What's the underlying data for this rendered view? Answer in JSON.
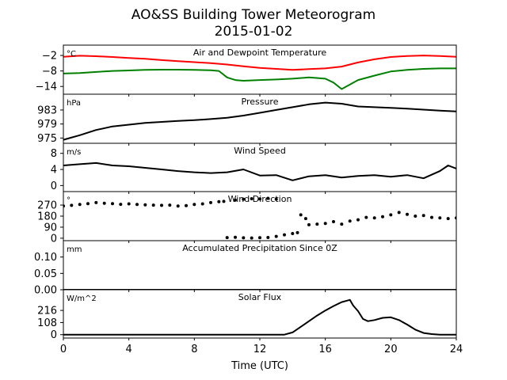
{
  "figure": {
    "title_line1": "AO&SS Building Tower Meteorogram",
    "title_line2": "2015-01-02",
    "xlabel": "Time (UTC)",
    "xlim": [
      0,
      24
    ],
    "xticks": [
      "0",
      "4",
      "8",
      "12",
      "16",
      "20",
      "24"
    ]
  },
  "chart_data": [
    {
      "type": "line",
      "title": "Air and Dewpoint Temperature",
      "unit": "°C",
      "ylim": [
        -17,
        2
      ],
      "yticks": [
        -2,
        -8,
        -14
      ],
      "yticklabels": [
        "−2",
        "−8",
        "−14"
      ],
      "series": [
        {
          "color": "#ff0000",
          "style": "line",
          "x": [
            0,
            1,
            2,
            3,
            4,
            5,
            6,
            7,
            8,
            9,
            10,
            11,
            12,
            13,
            14,
            15,
            16,
            17,
            18,
            19,
            20,
            21,
            22,
            23,
            24
          ],
          "y": [
            -2.5,
            -2.1,
            -2.3,
            -2.6,
            -3.0,
            -3.3,
            -3.8,
            -4.2,
            -4.6,
            -5.0,
            -5.5,
            -6.2,
            -6.8,
            -7.2,
            -7.6,
            -7.3,
            -7.0,
            -6.3,
            -4.7,
            -3.5,
            -2.6,
            -2.2,
            -2.0,
            -2.2,
            -2.5
          ]
        },
        {
          "color": "#008000",
          "style": "line",
          "x": [
            0,
            1,
            2,
            3,
            4,
            5,
            6,
            7,
            8,
            9,
            9.5,
            10,
            10.5,
            11,
            12,
            13,
            14,
            15,
            16,
            16.5,
            17,
            18,
            19,
            20,
            21,
            22,
            23,
            24
          ],
          "y": [
            -9.0,
            -8.8,
            -8.4,
            -8.0,
            -7.8,
            -7.6,
            -7.5,
            -7.5,
            -7.6,
            -7.7,
            -8.0,
            -10.5,
            -11.5,
            -11.8,
            -11.5,
            -11.3,
            -11.0,
            -10.5,
            -11.0,
            -12.5,
            -15.0,
            -11.5,
            -9.8,
            -8.2,
            -7.6,
            -7.2,
            -7.0,
            -7.0
          ]
        }
      ]
    },
    {
      "type": "line",
      "title": "Pressure",
      "unit": "hPa",
      "ylim": [
        973.5,
        987.5
      ],
      "yticks": [
        983,
        979,
        975
      ],
      "yticklabels": [
        "983",
        "979",
        "975"
      ],
      "series": [
        {
          "color": "#000000",
          "style": "line",
          "x": [
            0,
            1,
            2,
            3,
            4,
            5,
            6,
            7,
            8,
            9,
            10,
            11,
            12,
            13,
            14,
            15,
            16,
            17,
            18,
            19,
            20,
            21,
            22,
            23,
            24
          ],
          "y": [
            974.5,
            975.8,
            977.3,
            978.3,
            978.8,
            979.3,
            979.6,
            979.9,
            980.1,
            980.4,
            980.8,
            981.4,
            982.2,
            983.0,
            983.8,
            984.6,
            985.1,
            984.8,
            984.0,
            983.8,
            983.6,
            983.4,
            983.1,
            982.8,
            982.6
          ]
        }
      ]
    },
    {
      "type": "line",
      "title": "Wind Speed",
      "unit": "m/s",
      "ylim": [
        -1.5,
        10.5
      ],
      "yticks": [
        8,
        4,
        0
      ],
      "yticklabels": [
        "8",
        "4",
        "0"
      ],
      "series": [
        {
          "color": "#000000",
          "style": "line",
          "x": [
            0,
            1,
            2,
            3,
            4,
            5,
            6,
            7,
            8,
            9,
            10,
            11,
            12,
            13,
            14,
            15,
            16,
            17,
            18,
            19,
            20,
            21,
            22,
            23,
            23.5,
            24
          ],
          "y": [
            5.0,
            5.3,
            5.6,
            5.0,
            4.8,
            4.4,
            4.0,
            3.6,
            3.3,
            3.1,
            3.3,
            4.0,
            2.5,
            2.6,
            1.3,
            2.3,
            2.6,
            2.0,
            2.4,
            2.6,
            2.2,
            2.6,
            1.8,
            3.6,
            5.0,
            4.2
          ]
        }
      ]
    },
    {
      "type": "scatter",
      "title": "Wind Direction",
      "unit": "°",
      "ylim": [
        -20,
        380
      ],
      "yticks": [
        270,
        180,
        90,
        0
      ],
      "yticklabels": [
        "270",
        "180",
        "90",
        "0"
      ],
      "series": [
        {
          "color": "#000000",
          "style": "points",
          "x": [
            0,
            0.5,
            1,
            1.5,
            2,
            2.5,
            3,
            3.5,
            4,
            4.5,
            5,
            5.5,
            6,
            6.5,
            7,
            7.5,
            8,
            8.5,
            9,
            9.5,
            9.8,
            10,
            10.5,
            11,
            11.5,
            12,
            12.5,
            13,
            13.5,
            14,
            14.3,
            14.5,
            14.8,
            15,
            15.5,
            16,
            16.5,
            17,
            17.5,
            18,
            18.5,
            19,
            19.5,
            20,
            20.5,
            21,
            21.5,
            22,
            22.5,
            23,
            23.5,
            24
          ],
          "y": [
            262,
            268,
            275,
            282,
            290,
            285,
            282,
            276,
            280,
            275,
            272,
            270,
            268,
            270,
            262,
            266,
            275,
            280,
            290,
            298,
            300,
            5,
            8,
            3,
            2,
            4,
            6,
            15,
            28,
            38,
            45,
            190,
            160,
            110,
            115,
            120,
            135,
            115,
            140,
            150,
            170,
            165,
            175,
            190,
            210,
            195,
            180,
            185,
            170,
            165,
            160,
            165
          ]
        },
        {
          "color": "#000000",
          "style": "points",
          "x": [
            10.5,
            11,
            11.5,
            12,
            12.5,
            13
          ],
          "y": [
            310,
            318,
            322,
            320,
            325,
            318
          ]
        }
      ]
    },
    {
      "type": "line",
      "title": "Accumulated Precipitation Since 0Z",
      "unit": "mm",
      "ylim": [
        0,
        0.15
      ],
      "yticks": [
        0.1,
        0.05,
        0.0
      ],
      "yticklabels": [
        "0.10",
        "0.05",
        "0.00"
      ],
      "series": [
        {
          "color": "#000000",
          "style": "line",
          "x": [
            0,
            24
          ],
          "y": [
            0,
            0
          ]
        }
      ]
    },
    {
      "type": "line",
      "title": "Solar Flux",
      "unit": "W/m^2",
      "ylim": [
        -30,
        400
      ],
      "yticks": [
        216,
        108,
        0
      ],
      "yticklabels": [
        "216",
        "108",
        "0"
      ],
      "series": [
        {
          "color": "#000000",
          "style": "line",
          "x": [
            0,
            13.5,
            14,
            14.5,
            15,
            15.5,
            16,
            16.5,
            17,
            17.5,
            17.7,
            18,
            18.3,
            18.6,
            19,
            19.5,
            20,
            20.5,
            21,
            21.5,
            22,
            22.5,
            23,
            24
          ],
          "y": [
            0,
            0,
            20,
            70,
            120,
            170,
            215,
            255,
            290,
            310,
            260,
            210,
            140,
            120,
            130,
            150,
            155,
            130,
            90,
            45,
            15,
            5,
            0,
            0
          ]
        }
      ]
    }
  ]
}
